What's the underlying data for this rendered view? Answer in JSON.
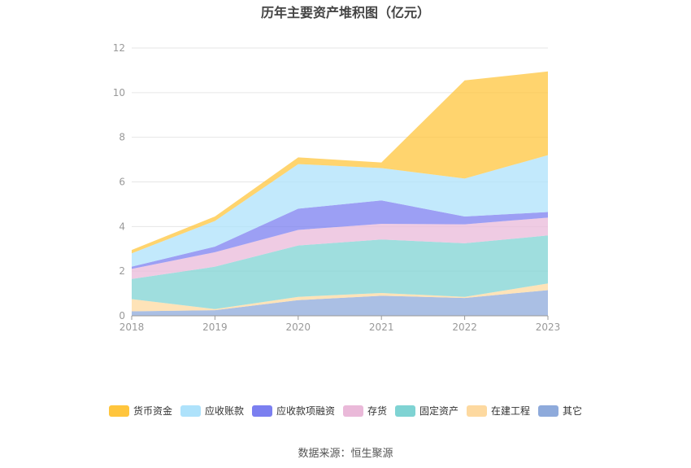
{
  "chart_data": {
    "type": "area",
    "title": "历年主要资产堆积图（亿元）",
    "xlabel": "",
    "ylabel": "",
    "ylim": [
      0,
      12
    ],
    "yticks": [
      0,
      2,
      4,
      6,
      8,
      10,
      12
    ],
    "categories": [
      "2018",
      "2019",
      "2020",
      "2021",
      "2022",
      "2023"
    ],
    "stacked": true,
    "legend_position": "bottom",
    "series": [
      {
        "name": "其它",
        "color": "#8eaadb",
        "values": [
          0.2,
          0.25,
          0.7,
          0.9,
          0.8,
          1.15
        ]
      },
      {
        "name": "在建工程",
        "color": "#fdd9a0",
        "values": [
          0.55,
          0.05,
          0.15,
          0.12,
          0.05,
          0.3
        ]
      },
      {
        "name": "固定资产",
        "color": "#7fd3d3",
        "values": [
          0.9,
          1.9,
          2.3,
          2.4,
          2.4,
          2.15
        ]
      },
      {
        "name": "存货",
        "color": "#eab9d9",
        "values": [
          0.45,
          0.65,
          0.7,
          0.7,
          0.85,
          0.8
        ]
      },
      {
        "name": "应收款项融资",
        "color": "#7b7ff0",
        "values": [
          0.1,
          0.25,
          0.95,
          1.05,
          0.35,
          0.25
        ]
      },
      {
        "name": "应收账款",
        "color": "#aee2fb",
        "values": [
          0.6,
          1.15,
          2.0,
          1.45,
          1.7,
          2.55
        ]
      },
      {
        "name": "货币资金",
        "color": "#ffc53d",
        "values": [
          0.15,
          0.2,
          0.3,
          0.25,
          4.4,
          3.75
        ]
      }
    ],
    "legend_order": [
      "货币资金",
      "应收账款",
      "应收款项融资",
      "存货",
      "固定资产",
      "在建工程",
      "其它"
    ]
  },
  "source": "数据来源：恒生聚源"
}
